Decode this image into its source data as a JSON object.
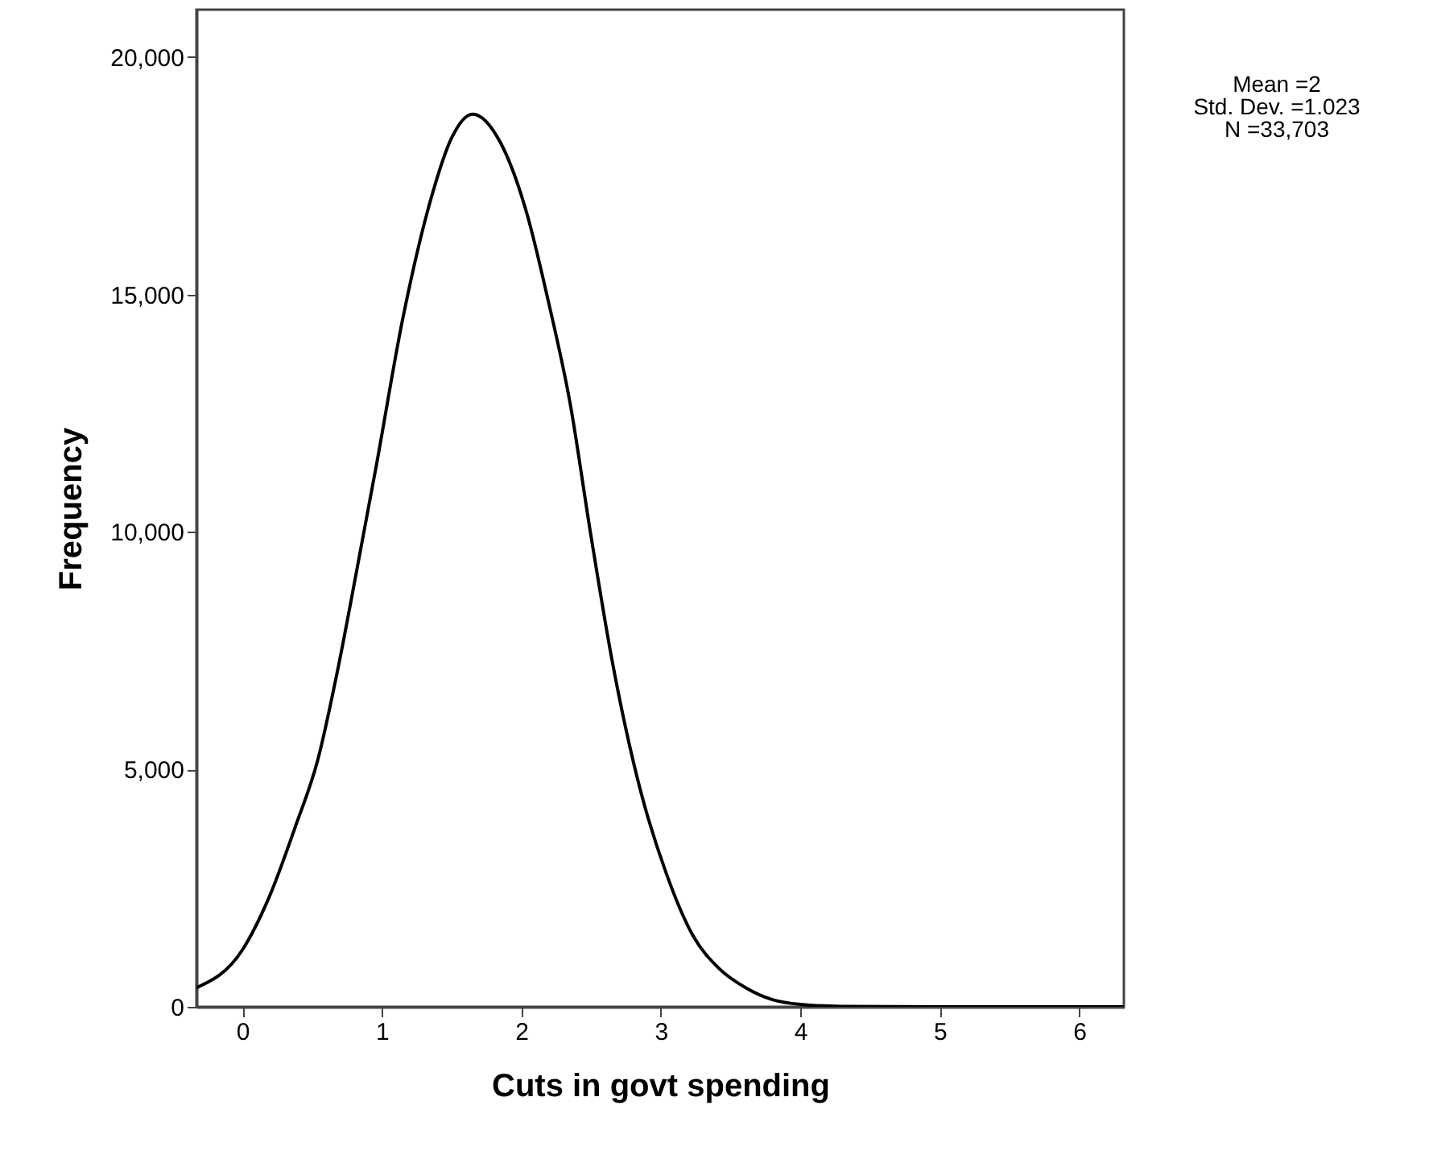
{
  "chart_data": {
    "type": "line",
    "xlabel": "Cuts in govt spending",
    "ylabel": "Frequency",
    "annotations": [
      "Mean =2",
      "Std. Dev. =1.023",
      "N =33,703"
    ],
    "xlim": [
      -0.33,
      6.32
    ],
    "xticks": [
      0,
      1,
      2,
      3,
      4,
      5,
      6
    ],
    "ylim": [
      0,
      21000
    ],
    "yticks": [
      0,
      {
        "value": 5000,
        "label": "5,000"
      },
      {
        "value": 10000,
        "label": "10,000"
      },
      {
        "value": 15000,
        "label": "15,000"
      },
      {
        "value": 20000,
        "label": "20,000"
      }
    ],
    "series": [
      {
        "color": "#000000",
        "x": [
          -0.33,
          0,
          0.19,
          0.38,
          0.54,
          0.69,
          0.82,
          0.96,
          1.15,
          1.35,
          1.5,
          1.65,
          1.85,
          2.04,
          2.19,
          2.35,
          2.5,
          2.65,
          2.85,
          3.04,
          3.23,
          3.42,
          3.61,
          3.8,
          4,
          4.3,
          5,
          6.32
        ],
        "values": [
          400,
          1200,
          2300,
          3800,
          5200,
          7200,
          9200,
          11400,
          14500,
          17000,
          18300,
          18800,
          18200,
          16700,
          14900,
          12700,
          9900,
          7300,
          4600,
          2800,
          1500,
          800,
          400,
          150,
          50,
          10,
          0,
          0
        ]
      }
    ]
  }
}
